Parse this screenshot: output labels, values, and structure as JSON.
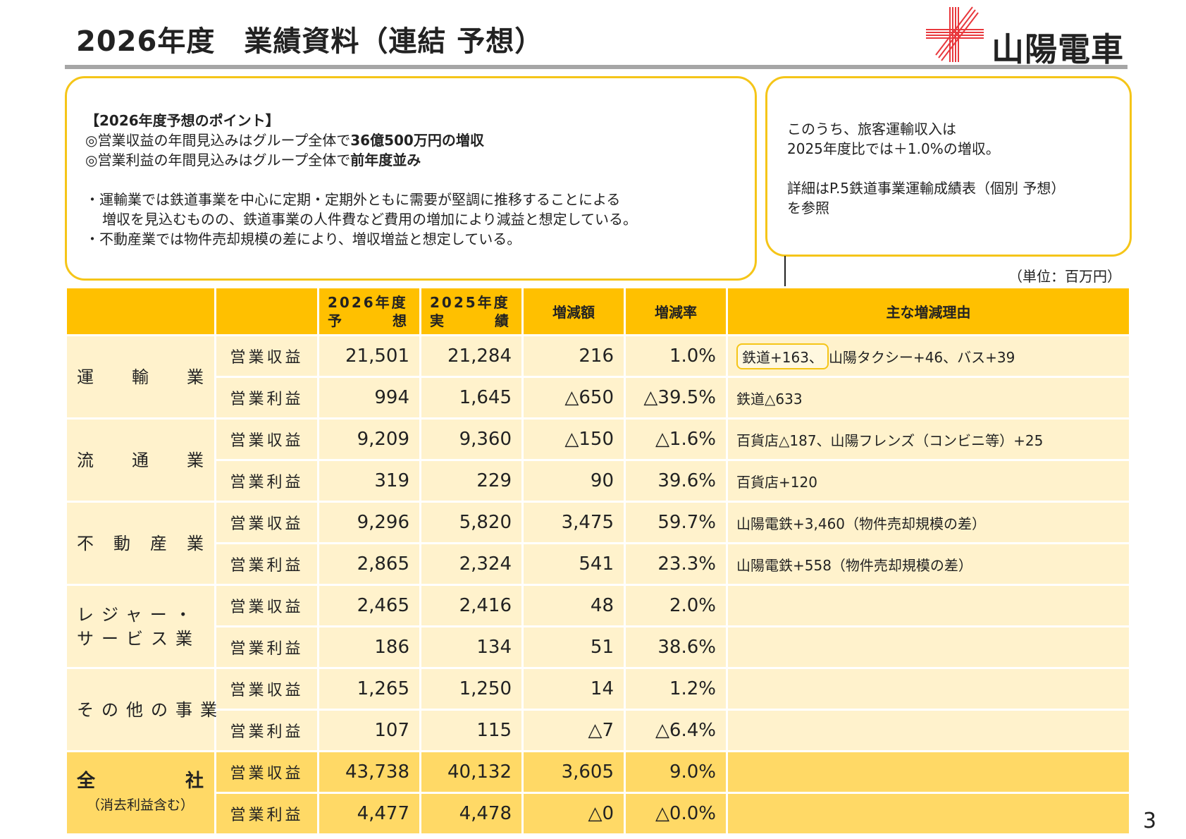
{
  "header": {
    "title": "2026年度　業績資料（連結 予想）",
    "logo_text": "山陽電車",
    "logo_color": "#e8383d"
  },
  "points_box": {
    "heading": "【2026年度予想のポイント】",
    "line1_prefix": "◎営業収益の年間見込みはグループ全体で",
    "line1_bold": "36億500万円の増収",
    "line2_prefix": "◎営業利益の年間見込みはグループ全体で",
    "line2_bold": "前年度並み",
    "bullet1_a": "・運輸業では鉄道事業を中心に定期・定期外ともに需要が堅調に推移することによる",
    "bullet1_b": "増収を見込むものの、鉄道事業の人件費など費用の増加により減益と想定している。",
    "bullet2": "・不動産業では物件売却規模の差により、増収増益と想定している。"
  },
  "note_box": {
    "line1": "このうち、旅客運輸収入は",
    "line2": "2025年度比では＋1.0%の増収。",
    "line3": "詳細はP.5鉄道事業運輸成績表（個別 予想）",
    "line4": "を参照"
  },
  "unit": "（単位：百万円）",
  "table": {
    "headers": {
      "fy2026_top": "2026年度",
      "fy2026_a": "予",
      "fy2026_b": "想",
      "fy2025_top": "2025年度",
      "fy2025_a": "実",
      "fy2025_b": "績",
      "diff": "増減額",
      "rate": "増減率",
      "reason": "主な増減理由"
    },
    "revenue_label": "営業収益",
    "profit_label": "営業利益",
    "transport": {
      "c1": "運",
      "c2": "輸",
      "c3": "業",
      "rev": {
        "fy2026": "21,501",
        "fy2025": "21,284",
        "diff": "216",
        "rate": "1.0%",
        "reason_hl": "鉄道+163、",
        "reason_rest": "山陽タクシー+46、バス+39"
      },
      "op": {
        "fy2026": "994",
        "fy2025": "1,645",
        "diff": "△650",
        "rate": "△39.5%",
        "reason": "鉄道△633"
      }
    },
    "distribution": {
      "c1": "流",
      "c2": "通",
      "c3": "業",
      "rev": {
        "fy2026": "9,209",
        "fy2025": "9,360",
        "diff": "△150",
        "rate": "△1.6%",
        "reason": "百貨店△187、山陽フレンズ（コンビニ等）+25"
      },
      "op": {
        "fy2026": "319",
        "fy2025": "229",
        "diff": "90",
        "rate": "39.6%",
        "reason": "百貨店+120"
      }
    },
    "real_estate": {
      "c1": "不",
      "c2": "動",
      "c3": "産",
      "c4": "業",
      "rev": {
        "fy2026": "9,296",
        "fy2025": "5,820",
        "diff": "3,475",
        "rate": "59.7%",
        "reason": "山陽電鉄+3,460（物件売却規模の差）"
      },
      "op": {
        "fy2026": "2,865",
        "fy2025": "2,324",
        "diff": "541",
        "rate": "23.3%",
        "reason": "山陽電鉄+558（物件売却規模の差）"
      }
    },
    "leisure": {
      "line1": "レジャー・",
      "line2": "サービス業",
      "rev": {
        "fy2026": "2,465",
        "fy2025": "2,416",
        "diff": "48",
        "rate": "2.0%",
        "reason": ""
      },
      "op": {
        "fy2026": "186",
        "fy2025": "134",
        "diff": "51",
        "rate": "38.6%",
        "reason": ""
      }
    },
    "other": {
      "label": "その他の事業",
      "rev": {
        "fy2026": "1,265",
        "fy2025": "1,250",
        "diff": "14",
        "rate": "1.2%",
        "reason": ""
      },
      "op": {
        "fy2026": "107",
        "fy2025": "115",
        "diff": "△7",
        "rate": "△6.4%",
        "reason": ""
      }
    },
    "total": {
      "c1": "全",
      "c2": "社",
      "sub": "（消去利益含む）",
      "rev": {
        "fy2026": "43,738",
        "fy2025": "40,132",
        "diff": "3,605",
        "rate": "9.0%",
        "reason": ""
      },
      "op": {
        "fy2026": "4,477",
        "fy2025": "4,478",
        "diff": "△0",
        "rate": "△0.0%",
        "reason": ""
      }
    }
  },
  "page_number": "3"
}
